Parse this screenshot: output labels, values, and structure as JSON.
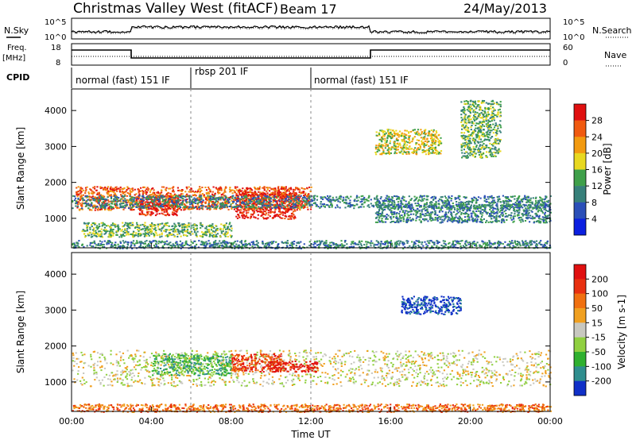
{
  "header": {
    "station": "Christmas Valley West (fitACF)",
    "beam": "Beam 17",
    "date": "24/May/2013"
  },
  "nsky_panel": {
    "label": "N.Sky",
    "ticks_left": [
      "10^5",
      "10^0"
    ],
    "ticks_right": [
      "10^5",
      "10^0"
    ],
    "right_label": "N.Search"
  },
  "freq_panel": {
    "label_line1": "Freq.",
    "label_line2": "[MHz]",
    "ticks_left": [
      "18",
      "8"
    ],
    "ticks_right": [
      "60",
      "0"
    ],
    "right_label": "Nave"
  },
  "cpid": {
    "label": "CPID",
    "segments": [
      {
        "name": "normal (fast) 151 IF",
        "start_hour": 0,
        "end_hour": 6
      },
      {
        "name": "rbsp 201 IF",
        "start_hour": 6,
        "end_hour": 12
      },
      {
        "name": "normal (fast) 151 IF",
        "start_hour": 12,
        "end_hour": 24
      }
    ]
  },
  "chart_data": [
    {
      "type": "heatmap",
      "title": "",
      "ylabel": "Slant Range [km]",
      "xlabel": "",
      "xlim": [
        0,
        24
      ],
      "ylim": [
        180,
        4600
      ],
      "yticks": [
        "1000",
        "2000",
        "3000",
        "4000"
      ],
      "colorbar": {
        "label": "Power [dB]",
        "ticks": [
          "4",
          "8",
          "12",
          "16",
          "20",
          "24",
          "28"
        ],
        "colors": [
          "#0b1fe0",
          "#2b4fb8",
          "#37807a",
          "#3fa04a",
          "#e8d820",
          "#f29a10",
          "#f05a10",
          "#e01010"
        ]
      },
      "regions": [
        {
          "t0": 0.2,
          "t1": 12.0,
          "r0": 1250,
          "r1": 1900,
          "level": 0.9
        },
        {
          "t0": 3.3,
          "t1": 5.3,
          "r0": 1100,
          "r1": 1650,
          "level": 1.0
        },
        {
          "t0": 8.2,
          "t1": 11.2,
          "r0": 1000,
          "r1": 1750,
          "level": 1.0
        },
        {
          "t0": 0.0,
          "t1": 24.0,
          "r0": 1300,
          "r1": 1650,
          "level": 0.3
        },
        {
          "t0": 15.2,
          "t1": 24.0,
          "r0": 900,
          "r1": 1400,
          "level": 0.25
        },
        {
          "t0": 15.2,
          "t1": 18.5,
          "r0": 2800,
          "r1": 3500,
          "level": 0.55
        },
        {
          "t0": 19.5,
          "t1": 21.5,
          "r0": 2700,
          "r1": 4300,
          "level": 0.45
        },
        {
          "t0": 0.5,
          "t1": 8.0,
          "r0": 500,
          "r1": 900,
          "level": 0.45
        },
        {
          "t0": 0.0,
          "t1": 24.0,
          "r0": 180,
          "r1": 400,
          "level": 0.35
        }
      ]
    },
    {
      "type": "heatmap",
      "title": "",
      "ylabel": "Slant Range [km]",
      "xlabel": "Time UT",
      "xlim": [
        0,
        24
      ],
      "ylim": [
        180,
        4600
      ],
      "xticks": [
        "00:00",
        "04:00",
        "08:00",
        "12:00",
        "16:00",
        "20:00",
        "00:00"
      ],
      "yticks": [
        "1000",
        "2000",
        "3000",
        "4000"
      ],
      "colorbar": {
        "label": "Velocity [m s-1]",
        "ticks": [
          "200",
          "100",
          "50",
          "15",
          "-15",
          "-50",
          "-100",
          "-200"
        ],
        "colors": [
          "#1030c8",
          "#2f8e8e",
          "#2fb02f",
          "#90d040",
          "#c8c8c0",
          "#f0a020",
          "#f07010",
          "#e83010",
          "#e01010"
        ]
      },
      "regions": [
        {
          "t0": 0.0,
          "t1": 24.0,
          "r0": 900,
          "r1": 1900,
          "level": 0.45
        },
        {
          "t0": 4.0,
          "t1": 8.0,
          "r0": 1200,
          "r1": 1800,
          "level": 0.3
        },
        {
          "t0": 8.0,
          "t1": 10.5,
          "r0": 1300,
          "r1": 1800,
          "level": 0.85
        },
        {
          "t0": 10.0,
          "t1": 12.3,
          "r0": 1300,
          "r1": 1600,
          "level": 0.95
        },
        {
          "t0": 16.5,
          "t1": 19.5,
          "r0": 2900,
          "r1": 3400,
          "level": 0.05
        },
        {
          "t0": 0.0,
          "t1": 24.0,
          "r0": 180,
          "r1": 400,
          "level": 0.7
        }
      ]
    }
  ]
}
